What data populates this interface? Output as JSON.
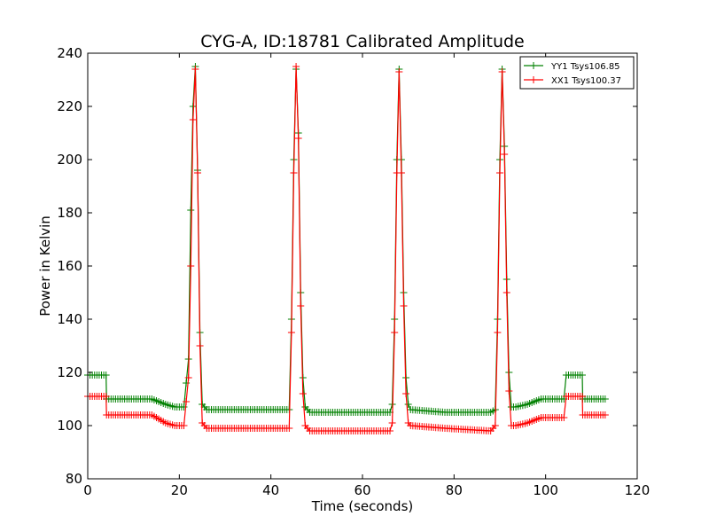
{
  "chart_data": {
    "type": "line",
    "title": "CYG-A, ID:18781 Calibrated Amplitude",
    "xlabel": "Time (seconds)",
    "ylabel": "Power in Kelvin",
    "xlim": [
      0,
      120
    ],
    "ylim": [
      80,
      240
    ],
    "xticks": [
      0,
      20,
      40,
      60,
      80,
      100,
      120
    ],
    "yticks": [
      80,
      100,
      120,
      140,
      160,
      180,
      200,
      220,
      240
    ],
    "grid": false,
    "legend_position": "top-right",
    "series": [
      {
        "name": "YY1 Tsys106.85",
        "color": "#008000",
        "x": [
          0,
          4,
          4.1,
          14,
          17,
          19,
          21,
          22,
          22.5,
          23,
          23.5,
          24,
          24.5,
          25,
          26,
          30,
          40,
          44,
          44.5,
          45,
          45.5,
          46,
          46.5,
          47,
          47.5,
          48.5,
          55,
          66,
          66.5,
          67,
          67.5,
          68,
          68.5,
          69,
          69.5,
          70,
          70.5,
          78,
          88,
          89,
          89.5,
          90,
          90.5,
          91,
          91.5,
          92,
          92.5,
          93,
          93.5,
          96,
          99,
          104,
          104.5,
          105,
          108,
          108.1,
          113
        ],
        "y": [
          119,
          119,
          110,
          110,
          108,
          107,
          107,
          125,
          181,
          220,
          235,
          196,
          135,
          108,
          106,
          106,
          106,
          106,
          140,
          200,
          234,
          210,
          150,
          118,
          107,
          105,
          105,
          105,
          108,
          140,
          200,
          234,
          200,
          150,
          118,
          108,
          106,
          105,
          105,
          106,
          140,
          200,
          234,
          205,
          155,
          120,
          107,
          107,
          107,
          108,
          110,
          110,
          119,
          119,
          119,
          110,
          110
        ]
      },
      {
        "name": "XX1 Tsys100.37",
        "color": "#ff0000",
        "x": [
          0,
          4,
          4.1,
          14,
          17,
          19,
          21,
          22,
          22.5,
          23,
          23.5,
          24,
          24.5,
          25,
          26,
          30,
          40,
          44,
          44.5,
          45,
          45.5,
          46,
          46.5,
          47,
          47.5,
          48.5,
          55,
          66,
          66.5,
          67,
          67.5,
          68,
          68.5,
          69,
          69.5,
          70,
          70.5,
          78,
          88,
          89,
          89.5,
          90,
          90.5,
          91,
          91.5,
          92,
          92.5,
          93,
          93.5,
          96,
          99,
          104,
          104.5,
          105,
          108,
          108.1,
          113
        ],
        "y": [
          111,
          111,
          104,
          104,
          101,
          100,
          100,
          118,
          160,
          215,
          234,
          195,
          130,
          101,
          99,
          99,
          99,
          99,
          135,
          195,
          235,
          208,
          145,
          112,
          100,
          98,
          98,
          98,
          101,
          135,
          195,
          233,
          195,
          145,
          112,
          101,
          100,
          99,
          98,
          100,
          135,
          195,
          233,
          202,
          150,
          113,
          100,
          100,
          100,
          101,
          103,
          103,
          111,
          111,
          111,
          104,
          104
        ]
      }
    ]
  }
}
